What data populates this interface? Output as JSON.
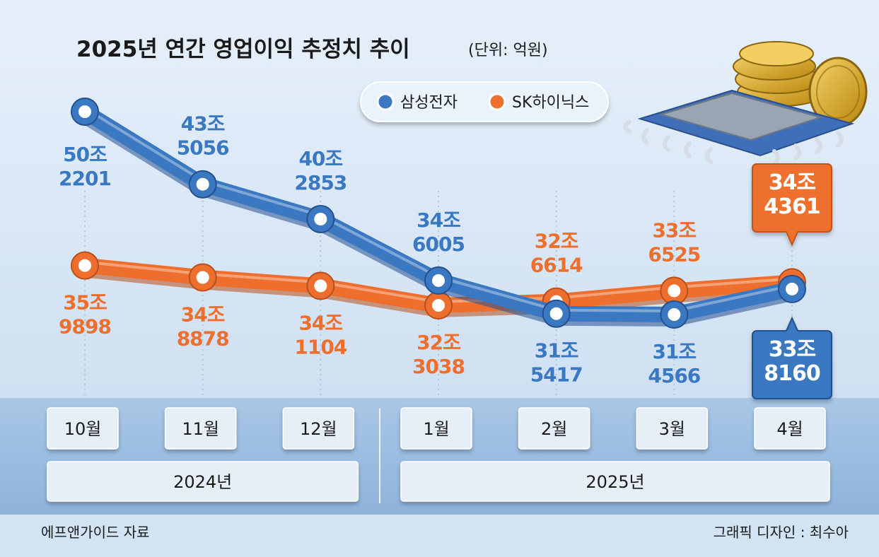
{
  "chart_data": {
    "type": "line",
    "title": "2025년 연간 영업이익 추정치 추이",
    "unit_note": "(단위: 억원)",
    "categories": [
      "10월",
      "11월",
      "12월",
      "1월",
      "2월",
      "3월",
      "4월"
    ],
    "year_groups": [
      {
        "label": "2024년",
        "span": [
          0,
          2
        ]
      },
      {
        "label": "2025년",
        "span": [
          3,
          6
        ]
      }
    ],
    "series": [
      {
        "name": "삼성전자",
        "color": "#3a78c2",
        "values": [
          502201,
          435056,
          402853,
          346005,
          315417,
          314566,
          338160
        ],
        "labels": [
          [
            "50조",
            "2201"
          ],
          [
            "43조",
            "5056"
          ],
          [
            "40조",
            "2853"
          ],
          [
            "34조",
            "6005"
          ],
          [
            "31조",
            "5417"
          ],
          [
            "31조",
            "4566"
          ],
          [
            "33조",
            "8160"
          ]
        ]
      },
      {
        "name": "SK하이닉스",
        "color": "#ee6f2d",
        "values": [
          359898,
          348878,
          341104,
          323038,
          326614,
          336525,
          344361
        ],
        "labels": [
          [
            "35조",
            "9898"
          ],
          [
            "34조",
            "8878"
          ],
          [
            "34조",
            "1104"
          ],
          [
            "32조",
            "3038"
          ],
          [
            "32조",
            "6614"
          ],
          [
            "33조",
            "6525"
          ],
          [
            "34조",
            "4361"
          ]
        ]
      }
    ],
    "source": "에프앤가이드 자료",
    "credit": "그래픽 디자인 : 최수아"
  }
}
